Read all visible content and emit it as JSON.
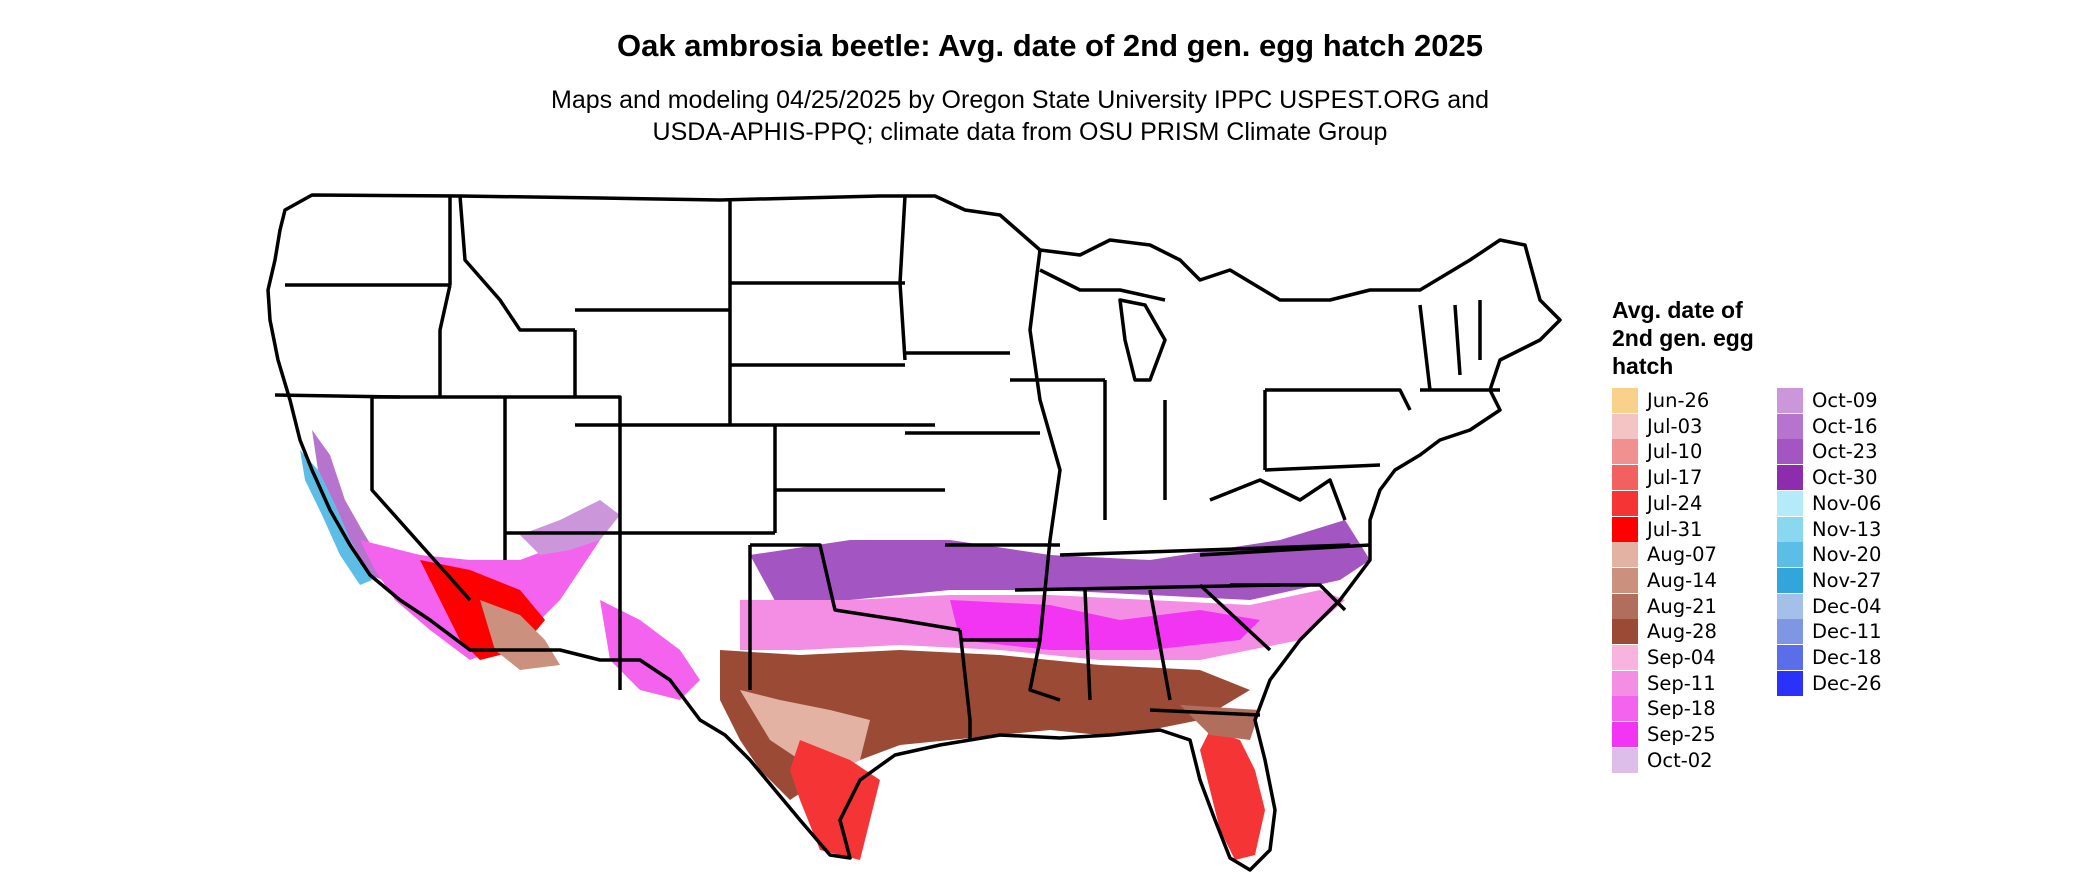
{
  "title": "Oak ambrosia beetle: Avg. date of 2nd gen. egg hatch 2025",
  "subtitle_line1": "Maps and modeling 04/25/2025 by Oregon State University IPPC USPEST.ORG and",
  "subtitle_line2": "USDA-APHIS-PPQ; climate data from OSU PRISM Climate Group",
  "legend": {
    "title_lines": [
      "Avg. date of",
      "2nd gen. egg",
      "hatch"
    ],
    "items": [
      {
        "label": "Jun-26",
        "color": "#F9D18A"
      },
      {
        "label": "Jul-03",
        "color": "#F4C4C4"
      },
      {
        "label": "Jul-10",
        "color": "#F09090"
      },
      {
        "label": "Jul-17",
        "color": "#F26060"
      },
      {
        "label": "Jul-24",
        "color": "#F53535"
      },
      {
        "label": "Jul-31",
        "color": "#FF0000"
      },
      {
        "label": "Aug-07",
        "color": "#E4B2A3"
      },
      {
        "label": "Aug-14",
        "color": "#CC907E"
      },
      {
        "label": "Aug-21",
        "color": "#B26E5C"
      },
      {
        "label": "Aug-28",
        "color": "#9B4A36"
      },
      {
        "label": "Sep-04",
        "color": "#F8B4DE"
      },
      {
        "label": "Sep-11",
        "color": "#F48DE4"
      },
      {
        "label": "Sep-18",
        "color": "#F463EE"
      },
      {
        "label": "Sep-25",
        "color": "#F235F2"
      },
      {
        "label": "Oct-02",
        "color": "#DDBEEA"
      },
      {
        "label": "Oct-09",
        "color": "#CB96DA"
      },
      {
        "label": "Oct-16",
        "color": "#B774CE"
      },
      {
        "label": "Oct-23",
        "color": "#A356C2"
      },
      {
        "label": "Oct-30",
        "color": "#8E2CAE"
      },
      {
        "label": "Nov-06",
        "color": "#B3ECF8"
      },
      {
        "label": "Nov-13",
        "color": "#8AD8EE"
      },
      {
        "label": "Nov-20",
        "color": "#5CBEE6"
      },
      {
        "label": "Nov-27",
        "color": "#32A6DA"
      },
      {
        "label": "Dec-04",
        "color": "#A4C0E8"
      },
      {
        "label": "Dec-11",
        "color": "#7E96E4"
      },
      {
        "label": "Dec-18",
        "color": "#5A6EEA"
      },
      {
        "label": "Dec-26",
        "color": "#2A32FA"
      }
    ]
  }
}
